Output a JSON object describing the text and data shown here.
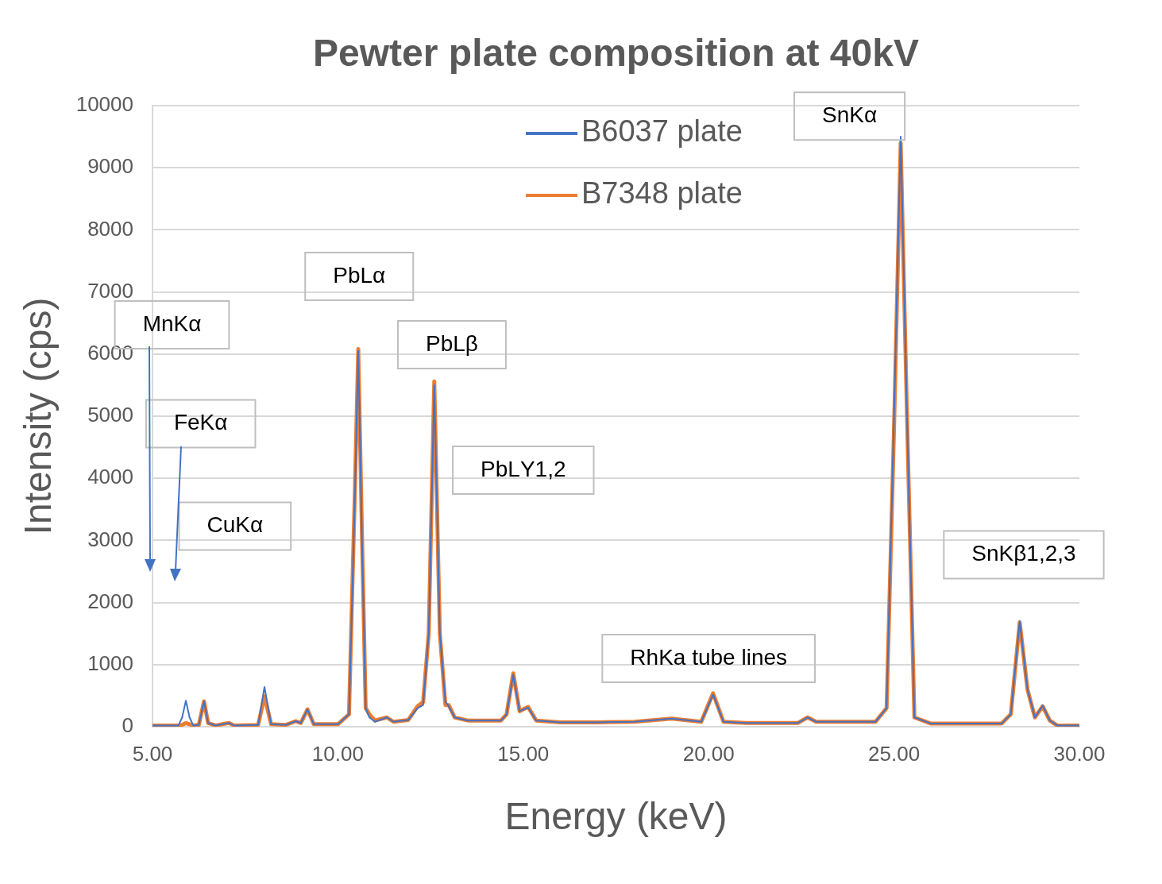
{
  "chart_data": {
    "type": "line",
    "title": "Pewter plate composition at 40kV",
    "xlabel": "Energy (keV)",
    "ylabel": "Intensity (cps)",
    "x": [
      5.0,
      5.7,
      5.8,
      5.9,
      6.0,
      6.1,
      6.25,
      6.39,
      6.5,
      6.7,
      7.06,
      7.2,
      7.85,
      8.02,
      8.2,
      8.6,
      8.86,
      9.0,
      9.18,
      9.35,
      10.0,
      10.3,
      10.45,
      10.55,
      10.65,
      10.75,
      10.85,
      11.0,
      11.32,
      11.5,
      11.9,
      12.15,
      12.3,
      12.45,
      12.6,
      12.75,
      12.9,
      12.99,
      13.15,
      13.5,
      14.4,
      14.55,
      14.73,
      14.9,
      15.13,
      15.35,
      16.0,
      17.0,
      18.0,
      19.0,
      19.8,
      20.12,
      20.4,
      21.0,
      22.4,
      22.67,
      22.9,
      24.5,
      24.8,
      25.0,
      25.18,
      25.35,
      25.55,
      26.0,
      27.9,
      28.15,
      28.39,
      28.6,
      28.8,
      29.01,
      29.2,
      29.4,
      30.0
    ],
    "series": [
      {
        "name": "B6037 plate",
        "color": "#4472c4",
        "values": [
          20,
          20,
          150,
          420,
          150,
          20,
          30,
          410,
          60,
          20,
          60,
          20,
          30,
          640,
          40,
          30,
          90,
          60,
          280,
          40,
          40,
          200,
          3500,
          6050,
          3000,
          300,
          150,
          80,
          150,
          80,
          110,
          300,
          350,
          1500,
          5500,
          1500,
          400,
          330,
          150,
          100,
          100,
          200,
          840,
          250,
          310,
          100,
          70,
          70,
          80,
          130,
          80,
          520,
          80,
          60,
          60,
          150,
          80,
          80,
          300,
          5000,
          9500,
          5000,
          150,
          50,
          50,
          200,
          1700,
          600,
          150,
          340,
          100,
          20,
          20
        ]
      },
      {
        "name": "B7348 plate",
        "color": "#ed7d31",
        "values": [
          20,
          20,
          30,
          60,
          40,
          20,
          30,
          410,
          60,
          20,
          60,
          20,
          30,
          490,
          40,
          30,
          90,
          60,
          280,
          40,
          40,
          200,
          3600,
          6080,
          3100,
          300,
          200,
          100,
          150,
          80,
          110,
          330,
          400,
          1500,
          5560,
          1500,
          350,
          350,
          150,
          100,
          100,
          200,
          860,
          250,
          320,
          100,
          70,
          70,
          80,
          130,
          80,
          540,
          80,
          60,
          60,
          150,
          80,
          80,
          300,
          4800,
          9400,
          5000,
          150,
          50,
          50,
          200,
          1680,
          600,
          150,
          330,
          100,
          20,
          20
        ]
      }
    ],
    "xlim": [
      5,
      30
    ],
    "xticks": [
      {
        "value": 5,
        "label": "5.00"
      },
      {
        "value": 10,
        "label": "10.00"
      },
      {
        "value": 15,
        "label": "15.00"
      },
      {
        "value": 20,
        "label": "20.00"
      },
      {
        "value": 25,
        "label": "25.00"
      },
      {
        "value": 30,
        "label": "30.00"
      }
    ],
    "ylim": [
      0,
      10000
    ],
    "yticks": [
      0,
      1000,
      2000,
      3000,
      4000,
      5000,
      6000,
      7000,
      8000,
      9000,
      10000
    ],
    "grid": "y",
    "legend": "top",
    "marker": "none",
    "line_style": "solid",
    "annotations": [
      "MnKα",
      "FeKα",
      "CuKα",
      "PbLα",
      "PbLβ",
      "PbLΥ1,2",
      "RhKa tube lines",
      "SnKα",
      "SnKβ1,2,3"
    ]
  }
}
